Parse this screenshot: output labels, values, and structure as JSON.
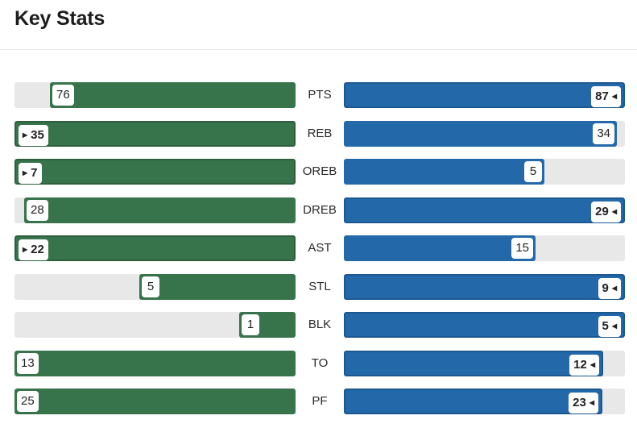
{
  "title": "Key Stats",
  "max_scale": 87,
  "stats": [
    {
      "label": "PTS",
      "left": 76,
      "right": 87,
      "leader": "right"
    },
    {
      "label": "REB",
      "left": 35,
      "right": 34,
      "leader": "left"
    },
    {
      "label": "OREB",
      "left": 7,
      "right": 5,
      "leader": "left"
    },
    {
      "label": "DREB",
      "left": 28,
      "right": 29,
      "leader": "right"
    },
    {
      "label": "AST",
      "left": 22,
      "right": 15,
      "leader": "left"
    },
    {
      "label": "STL",
      "left": 5,
      "right": 9,
      "leader": "right"
    },
    {
      "label": "BLK",
      "left": 1,
      "right": 5,
      "leader": "right"
    },
    {
      "label": "TO",
      "left": 13,
      "right": 12,
      "leader": "right"
    },
    {
      "label": "PF",
      "left": 25,
      "right": 23,
      "leader": "right"
    }
  ],
  "colors": {
    "left_team": "#38744b",
    "right_team": "#2368a8",
    "track": "#e8e8e8"
  }
}
